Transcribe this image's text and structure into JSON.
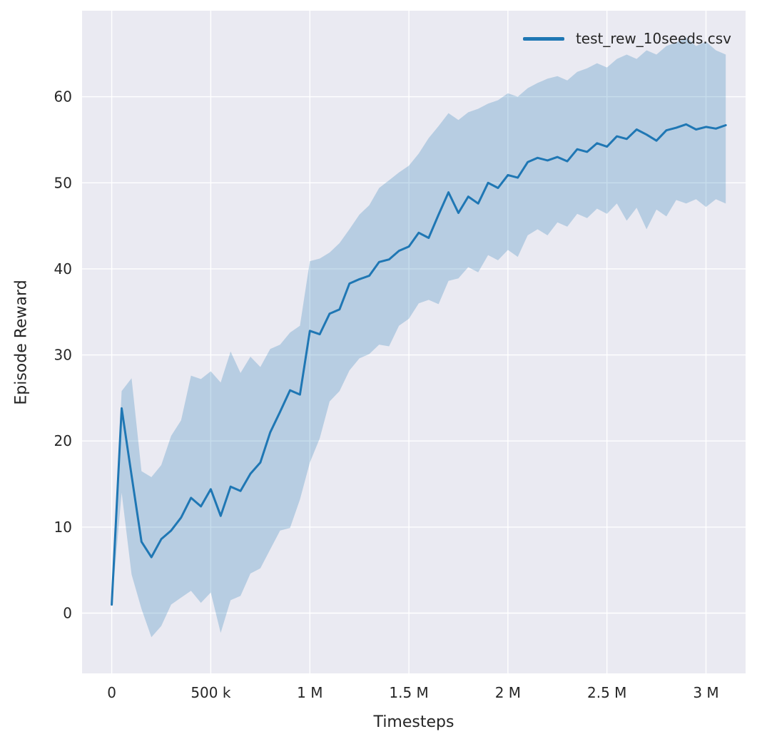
{
  "figure": {
    "background": "#ffffff",
    "axes_background": "#eaeaf2",
    "grid_color": "#ffffff",
    "tick_color": "#262626",
    "accent": "#1f77b4"
  },
  "chart_data": {
    "type": "line",
    "title": "",
    "xlabel": "Timesteps",
    "ylabel": "Episode Reward",
    "xlim": [
      -150000,
      3200000
    ],
    "ylim": [
      -7,
      70
    ],
    "grid": true,
    "xticks": [
      0,
      500000,
      1000000,
      1500000,
      2000000,
      2500000,
      3000000
    ],
    "xtick_labels": [
      "0",
      "500 k",
      "1 M",
      "1.5 M",
      "2 M",
      "2.5 M",
      "3 M"
    ],
    "yticks": [
      0,
      10,
      20,
      30,
      40,
      50,
      60
    ],
    "ytick_labels": [
      "0",
      "10",
      "20",
      "30",
      "40",
      "50",
      "60"
    ],
    "legend": {
      "position": "upper right",
      "entries": [
        {
          "label": "test_rew_10seeds.csv",
          "color": "#1f77b4"
        }
      ]
    },
    "series": [
      {
        "name": "test_rew_10seeds.csv",
        "color": "#1f77b4",
        "band_color": "rgba(31,119,180,0.25)",
        "x": [
          0,
          50000,
          100000,
          150000,
          200000,
          250000,
          300000,
          350000,
          400000,
          450000,
          500000,
          550000,
          600000,
          650000,
          700000,
          750000,
          800000,
          850000,
          900000,
          950000,
          1000000,
          1050000,
          1100000,
          1150000,
          1200000,
          1250000,
          1300000,
          1350000,
          1400000,
          1450000,
          1500000,
          1550000,
          1600000,
          1650000,
          1700000,
          1750000,
          1800000,
          1850000,
          1900000,
          1950000,
          2000000,
          2050000,
          2100000,
          2150000,
          2200000,
          2250000,
          2300000,
          2350000,
          2400000,
          2450000,
          2500000,
          2550000,
          2600000,
          2650000,
          2700000,
          2750000,
          2800000,
          2850000,
          2900000,
          2950000,
          3000000,
          3050000,
          3100000
        ],
        "mean": [
          1.0,
          23.8,
          16.0,
          8.3,
          6.5,
          8.6,
          9.6,
          11.1,
          13.4,
          12.4,
          14.4,
          11.3,
          14.7,
          14.2,
          16.2,
          17.5,
          21.0,
          23.4,
          25.9,
          25.4,
          32.8,
          32.4,
          34.8,
          35.3,
          38.3,
          38.8,
          39.2,
          40.8,
          41.1,
          42.1,
          42.6,
          44.2,
          43.6,
          46.3,
          48.9,
          46.5,
          48.4,
          47.6,
          50.0,
          49.4,
          50.9,
          50.6,
          52.4,
          52.9,
          52.6,
          53.0,
          52.5,
          53.9,
          53.6,
          54.6,
          54.2,
          55.4,
          55.1,
          56.2,
          55.6,
          54.9,
          56.1,
          56.4,
          56.8,
          56.2,
          56.5,
          56.3,
          56.7
        ],
        "band_lower": [
          0.9,
          14.0,
          4.5,
          0.5,
          -2.8,
          -1.5,
          1.0,
          1.8,
          2.6,
          1.2,
          2.4,
          -2.3,
          1.5,
          2.0,
          4.6,
          5.2,
          7.4,
          9.6,
          9.9,
          13.2,
          17.5,
          20.3,
          24.6,
          25.8,
          28.2,
          29.6,
          30.1,
          31.2,
          31.0,
          33.4,
          34.2,
          36.0,
          36.4,
          35.9,
          38.6,
          38.9,
          40.2,
          39.6,
          41.6,
          41.0,
          42.2,
          41.4,
          43.9,
          44.6,
          43.9,
          45.4,
          44.9,
          46.4,
          45.9,
          47.0,
          46.4,
          47.6,
          45.6,
          47.1,
          44.6,
          46.9,
          46.1,
          48.0,
          47.6,
          48.1,
          47.2,
          48.1,
          47.6
        ],
        "band_upper": [
          1.2,
          25.8,
          27.3,
          16.5,
          15.8,
          17.2,
          20.6,
          22.4,
          27.6,
          27.2,
          28.1,
          26.8,
          30.4,
          27.9,
          29.8,
          28.6,
          30.7,
          31.2,
          32.6,
          33.4,
          40.9,
          41.2,
          41.9,
          43.0,
          44.6,
          46.3,
          47.4,
          49.4,
          50.3,
          51.2,
          52.0,
          53.4,
          55.2,
          56.6,
          58.1,
          57.3,
          58.2,
          58.6,
          59.2,
          59.6,
          60.4,
          60.0,
          61.0,
          61.6,
          62.1,
          62.4,
          61.9,
          62.9,
          63.3,
          63.9,
          63.4,
          64.4,
          64.9,
          64.4,
          65.4,
          64.9,
          65.9,
          66.3,
          66.9,
          65.9,
          66.4,
          65.4,
          64.9
        ],
        "band_alpha": 0.25
      }
    ]
  }
}
